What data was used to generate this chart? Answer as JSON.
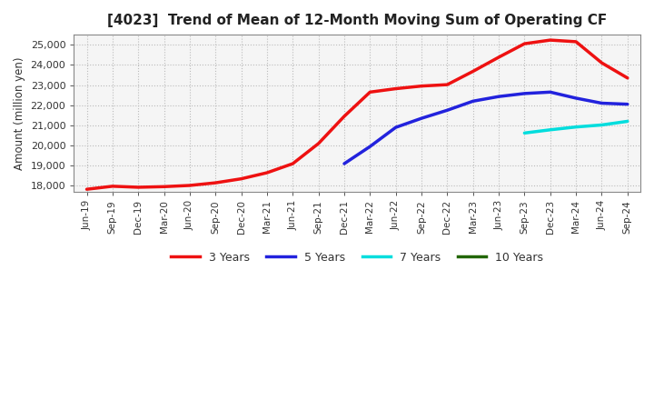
{
  "title": "[4023]  Trend of Mean of 12-Month Moving Sum of Operating CF",
  "ylabel": "Amount (million yen)",
  "background_color": "#ffffff",
  "plot_bg_color": "#f5f5f5",
  "grid_color": "#bbbbbb",
  "ylim": [
    17700,
    25500
  ],
  "yticks": [
    18000,
    19000,
    20000,
    21000,
    22000,
    23000,
    24000,
    25000
  ],
  "xtick_labels": [
    "Jun-19",
    "Sep-19",
    "Dec-19",
    "Mar-20",
    "Jun-20",
    "Sep-20",
    "Dec-20",
    "Mar-21",
    "Jun-21",
    "Sep-21",
    "Dec-21",
    "Mar-22",
    "Jun-22",
    "Sep-22",
    "Dec-22",
    "Mar-23",
    "Jun-23",
    "Sep-23",
    "Dec-23",
    "Mar-24",
    "Jun-24",
    "Sep-24"
  ],
  "series": {
    "3years": {
      "color": "#ee1111",
      "label": "3 Years",
      "x": [
        0,
        1,
        2,
        3,
        4,
        5,
        6,
        7,
        8,
        9,
        10,
        11,
        12,
        13,
        14,
        15,
        16,
        17,
        18,
        19,
        20,
        21
      ],
      "y": [
        17830,
        17980,
        17930,
        17960,
        18020,
        18150,
        18350,
        18650,
        19100,
        20100,
        21450,
        22650,
        22820,
        22950,
        23020,
        23680,
        24380,
        25050,
        25230,
        25150,
        24100,
        23350
      ]
    },
    "5years": {
      "color": "#2222dd",
      "label": "5 Years",
      "x": [
        10,
        11,
        12,
        13,
        14,
        15,
        16,
        17,
        18,
        19,
        20,
        21
      ],
      "y": [
        19100,
        19950,
        20900,
        21350,
        21750,
        22200,
        22430,
        22580,
        22650,
        22350,
        22100,
        22050
      ]
    },
    "7years": {
      "color": "#00dddd",
      "label": "7 Years",
      "x": [
        17,
        18,
        19,
        20,
        21
      ],
      "y": [
        20620,
        20780,
        20920,
        21020,
        21200
      ]
    },
    "10years": {
      "color": "#226600",
      "label": "10 Years",
      "x": [],
      "y": []
    }
  }
}
